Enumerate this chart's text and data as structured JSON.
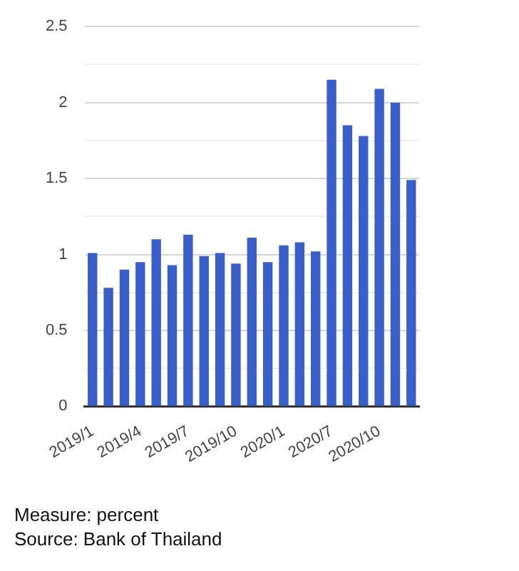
{
  "chart_data": {
    "type": "bar",
    "categories": [
      "2019/1",
      null,
      null,
      "2019/4",
      null,
      null,
      "2019/7",
      null,
      null,
      "2019/10",
      null,
      null,
      "2020/1",
      null,
      null,
      "2020/7",
      null,
      null,
      "2020/10",
      null,
      null
    ],
    "values": [
      1.01,
      0.78,
      0.9,
      0.95,
      1.1,
      0.93,
      1.13,
      0.99,
      1.01,
      0.94,
      1.11,
      0.95,
      1.06,
      1.08,
      1.02,
      2.15,
      1.85,
      1.78,
      2.09,
      2.0,
      1.49
    ],
    "color": "#3b5fc8",
    "ylim": [
      0,
      2.5
    ],
    "yticks": [
      0,
      {
        "value": 0.25,
        "label": null
      },
      0.5,
      {
        "value": 0.75,
        "label": null
      },
      1,
      {
        "value": 1.25,
        "label": null
      },
      1.5,
      {
        "value": 1.75,
        "label": null
      },
      2,
      {
        "value": 2.25,
        "label": null
      },
      2.5
    ],
    "grid": "y",
    "legend": false,
    "annotations": [
      "Measure: percent",
      "Source: Bank of Thailand"
    ]
  }
}
